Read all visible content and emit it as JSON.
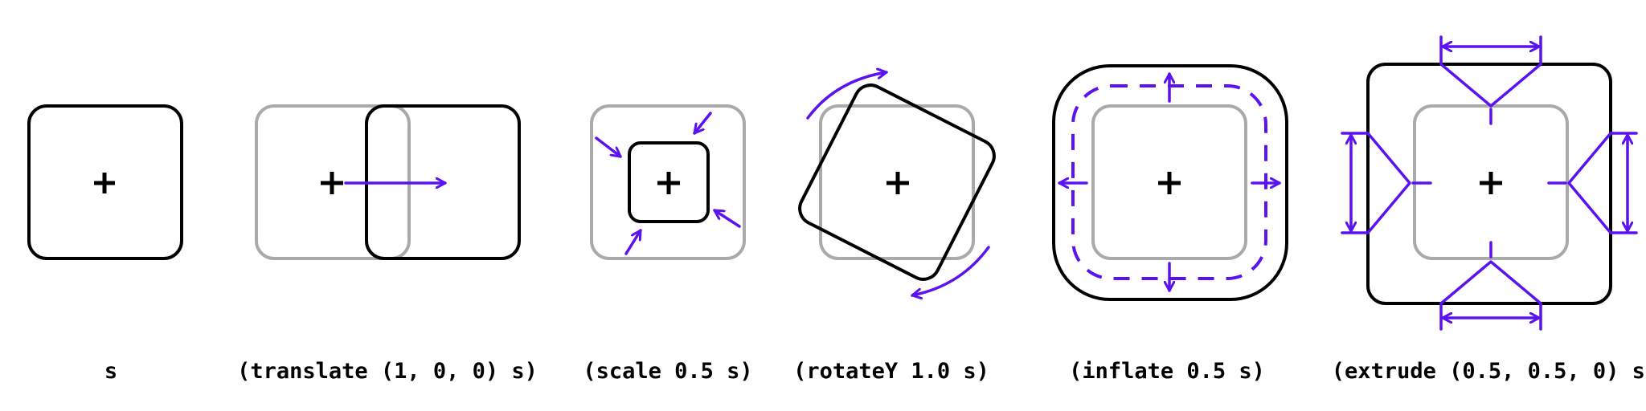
{
  "figure": {
    "colors": {
      "outline": "#000000",
      "ghost": "#aaaaaa",
      "accent": "#5b12f0"
    },
    "panels": [
      {
        "caption": "s"
      },
      {
        "caption": "(translate (1, 0, 0) s)"
      },
      {
        "caption": "(scale 0.5 s)"
      },
      {
        "caption": "(rotateY 1.0 s)"
      },
      {
        "caption": "(inflate 0.5 s)"
      },
      {
        "caption": "(extrude (0.5, 0.5, 0) s)"
      }
    ]
  }
}
